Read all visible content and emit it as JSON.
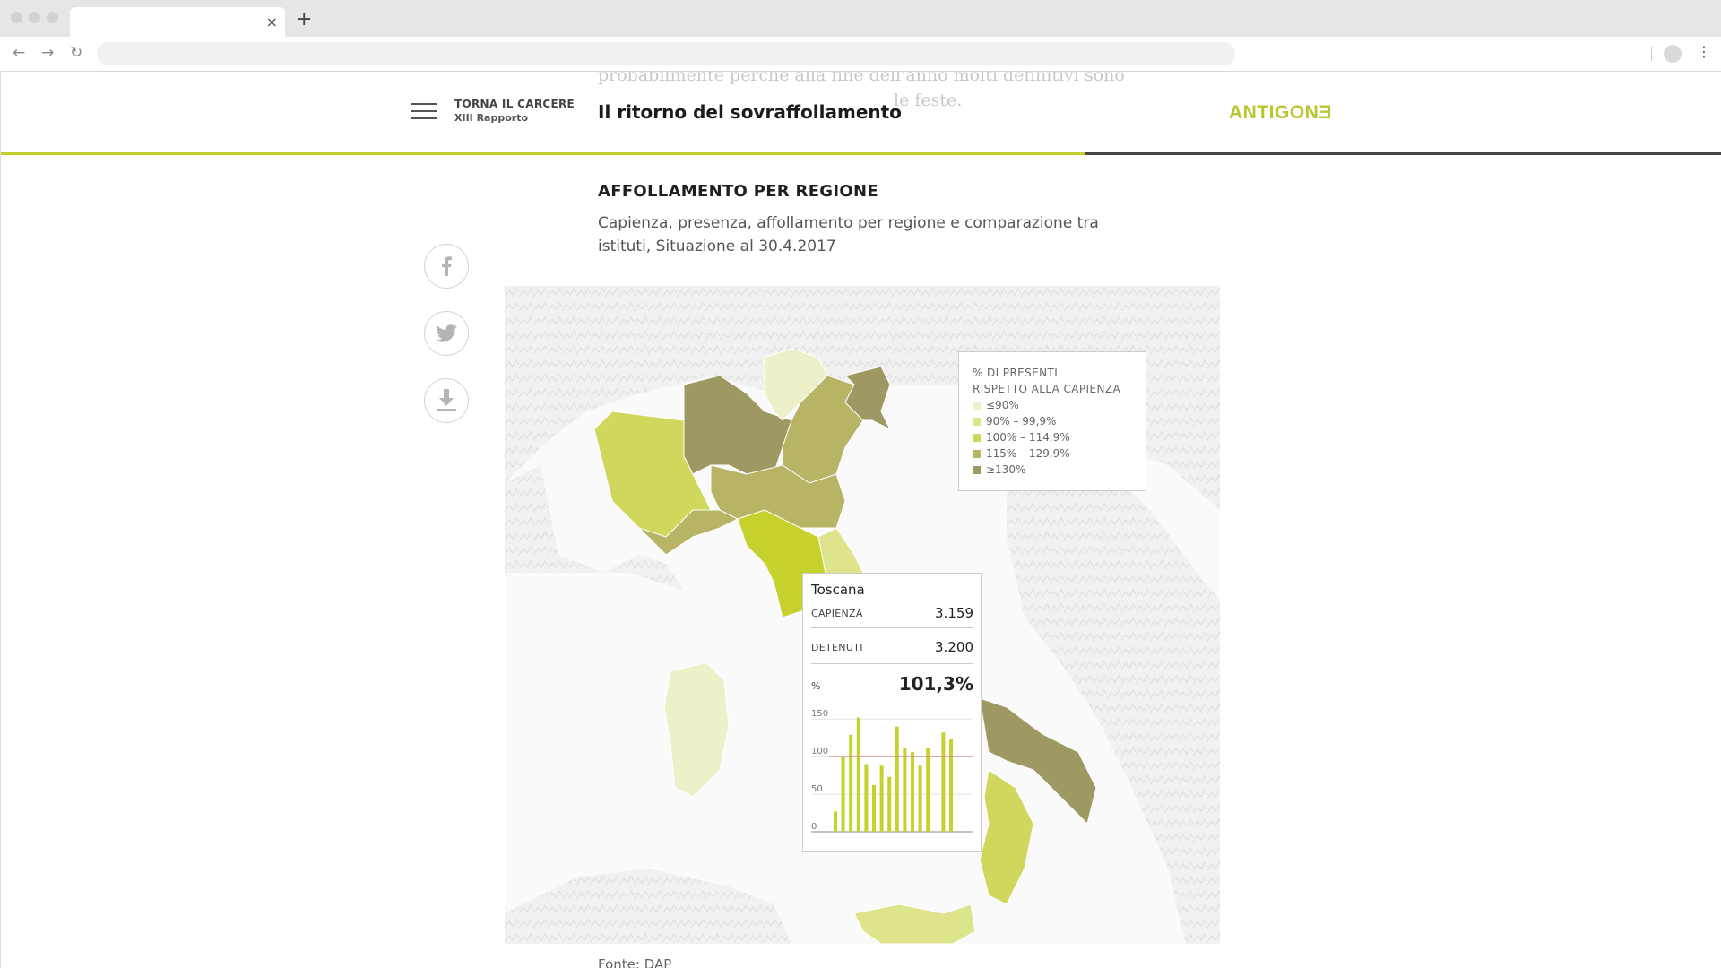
{
  "browser": {
    "tab_close": "×",
    "new_tab": "+"
  },
  "background_text": {
    "line1": "probabilmente perché alla fine dell'anno molti definitivi sono",
    "line2": "le feste."
  },
  "header": {
    "section": "TORNA IL CARCERE",
    "subsection": "XIII Rapporto",
    "title": "Il ritorno del sovraffollamento",
    "logo": "ANTIGONƎ",
    "reading_progress_percent": 63
  },
  "share": [
    "facebook-icon",
    "twitter-icon",
    "download-icon"
  ],
  "section": {
    "title": "AFFOLLAMENTO PER REGIONE",
    "description": "Capienza, presenza, affollamento per regione e comparazione tra istituti, Situazione al 30.4.2017"
  },
  "legend": {
    "title_line1": "% DI PRESENTI",
    "title_line2": "RISPETTO ALLA CAPIENZA",
    "items": [
      {
        "label": "≤90%",
        "color": "#eef0c9"
      },
      {
        "label": "90% – 99,9%",
        "color": "#dde48c"
      },
      {
        "label": "100% – 114,9%",
        "color": "#cfd85d"
      },
      {
        "label": "115% – 129,9%",
        "color": "#b7b465"
      },
      {
        "label": "≥130%",
        "color": "#9e9863"
      }
    ]
  },
  "tooltip": {
    "region": "Toscana",
    "capienza_label": "CAPIENZA",
    "capienza_value": "3.159",
    "detenuti_label": "DETENUTI",
    "detenuti_value": "3.200",
    "percent_label": "%",
    "percent_value": "101,3%"
  },
  "chart_data": {
    "type": "bar",
    "yticks": [
      "150",
      "100",
      "50",
      "0"
    ],
    "ylim": [
      0,
      155
    ],
    "reference_line": 100,
    "reference_color": "#d98b8b",
    "bar_color": "#c6d12d",
    "values": [
      27,
      99,
      129,
      152,
      90,
      62,
      88,
      73,
      140,
      112,
      106,
      88,
      112,
      0,
      132,
      123
    ]
  },
  "source": "Fonte: DAP",
  "map_colors": {
    "piemonte": "#cfd85d",
    "lombardia": "#9e9863",
    "trentino": "#eef0c9",
    "veneto": "#b7b465",
    "friuli": "#9e9863",
    "liguria": "#b7b465",
    "emilia": "#b7b465",
    "toscana": "#c6d12d",
    "marche": "#dde48c",
    "sardegna": "#eef0c9",
    "puglia": "#9e9863",
    "calabria": "#cfd85d",
    "sicilia": "#dde48c"
  }
}
